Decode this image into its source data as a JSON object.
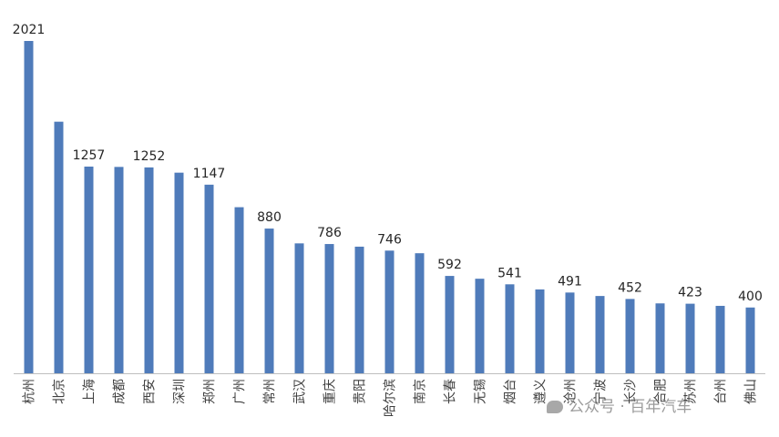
{
  "chart_data": {
    "type": "bar",
    "categories": [
      "杭州",
      "北京",
      "上海",
      "成都",
      "西安",
      "深圳",
      "郑州",
      "广州",
      "常州",
      "武汉",
      "重庆",
      "贵阳",
      "哈尔滨",
      "南京",
      "长春",
      "无锡",
      "烟台",
      "遵义",
      "沧州",
      "宁波",
      "长沙",
      "合肥",
      "苏州",
      "台州",
      "佛山"
    ],
    "values": [
      2021,
      1530,
      1257,
      1255,
      1252,
      1220,
      1147,
      1010,
      880,
      790,
      786,
      770,
      746,
      730,
      592,
      575,
      541,
      510,
      491,
      470,
      452,
      425,
      423,
      410,
      400
    ],
    "data_labels": {
      "0": "2021",
      "2": "1257",
      "4": "1252",
      "6": "1147",
      "8": "880",
      "10": "786",
      "12": "746",
      "14": "592",
      "16": "541",
      "18": "491",
      "20": "452",
      "22": "423",
      "24": "400"
    },
    "ylim": [
      0,
      2021
    ],
    "bar_color": "#4f7bba",
    "grid": false,
    "legend": "none"
  },
  "watermark": {
    "icon": "wechat-icon",
    "text": "公众号 · 百年汽车"
  }
}
